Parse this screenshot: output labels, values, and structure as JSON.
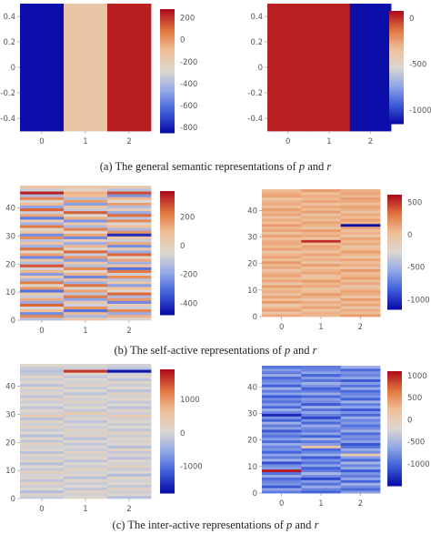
{
  "captions": [
    {
      "prefix": "(a) The general semantic representations of ",
      "v1": "p",
      "mid": " and ",
      "v2": "r"
    },
    {
      "prefix": "(b) The self-active representations of ",
      "v1": "p",
      "mid": " and ",
      "v2": "r"
    },
    {
      "prefix": "(c) The inter-active representations of ",
      "v1": "p",
      "mid": " and ",
      "v2": "r"
    }
  ],
  "colorscale": [
    "#0b0ea8",
    "#3f5fd9",
    "#93a8e8",
    "#dcd7d0",
    "#efbf98",
    "#e2763f",
    "#b00d1d"
  ],
  "chart_data": [
    {
      "type": "heatmap",
      "title": "",
      "x": [
        0,
        1,
        2
      ],
      "xticks": [
        "0",
        "1",
        "2"
      ],
      "yticks": [
        "0.4",
        "0.2",
        "0",
        "-0.2",
        "-0.4"
      ],
      "ylim": [
        -0.5,
        0.5
      ],
      "zlim": [
        -850,
        280
      ],
      "colorbar_ticks": [
        "200",
        "0",
        "-200",
        "-400",
        "-600",
        "-800"
      ],
      "rows": 1,
      "values": [
        [
          -850,
          -150,
          250
        ]
      ]
    },
    {
      "type": "heatmap",
      "title": "",
      "x": [
        0,
        1,
        2
      ],
      "xticks": [
        "0",
        "1",
        "2"
      ],
      "yticks": [
        "0.4",
        "0.2",
        "0",
        "-0.2",
        "-0.4"
      ],
      "ylim": [
        -0.5,
        0.5
      ],
      "zlim": [
        -1150,
        80
      ],
      "colorbar_ticks": [
        "0",
        "-500",
        "-1000"
      ],
      "rows": 1,
      "values": [
        [
          40,
          40,
          -1150
        ]
      ]
    },
    {
      "type": "heatmap",
      "title": "",
      "x": [
        0,
        1,
        2
      ],
      "xticks": [
        "0",
        "1",
        "2"
      ],
      "yticks": [
        "40",
        "30",
        "20",
        "10",
        "0"
      ],
      "ylim": [
        0,
        48
      ],
      "zlim": [
        -480,
        380
      ],
      "colorbar_ticks": [
        "200",
        "0",
        "-200",
        "-400"
      ],
      "rows": 48,
      "values": [
        [
          -120,
          60,
          -60
        ],
        [
          200,
          -150,
          120
        ],
        [
          -250,
          100,
          -180
        ],
        [
          90,
          -300,
          210
        ],
        [
          -60,
          180,
          -90
        ],
        [
          260,
          -80,
          30
        ],
        [
          -180,
          40,
          -260
        ],
        [
          130,
          -200,
          170
        ],
        [
          -90,
          220,
          -140
        ],
        [
          40,
          -110,
          250
        ],
        [
          -300,
          150,
          -40
        ],
        [
          170,
          -60,
          90
        ],
        [
          -40,
          240,
          -210
        ],
        [
          220,
          -170,
          60
        ],
        [
          -150,
          80,
          -120
        ],
        [
          60,
          -260,
          190
        ],
        [
          -220,
          120,
          -70
        ],
        [
          110,
          -40,
          230
        ],
        [
          -70,
          200,
          -300
        ],
        [
          280,
          -120,
          80
        ],
        [
          -130,
          60,
          -170
        ],
        [
          50,
          -220,
          140
        ],
        [
          -260,
          170,
          -30
        ],
        [
          150,
          -90,
          260
        ],
        [
          -30,
          250,
          -180
        ],
        [
          240,
          -60,
          40
        ],
        [
          -170,
          110,
          -240
        ],
        [
          80,
          -180,
          130
        ],
        [
          -110,
          30,
          -90
        ],
        [
          190,
          -250,
          60
        ],
        [
          -240,
          140,
          -420
        ],
        [
          70,
          -30,
          180
        ],
        [
          -50,
          210,
          -150
        ],
        [
          230,
          -140,
          90
        ],
        [
          -160,
          50,
          -60
        ],
        [
          30,
          -230,
          200
        ],
        [
          -280,
          130,
          -110
        ],
        [
          140,
          -50,
          250
        ],
        [
          -80,
          270,
          -190
        ],
        [
          260,
          -100,
          30
        ],
        [
          -200,
          70,
          -130
        ],
        [
          100,
          -210,
          160
        ],
        [
          -60,
          160,
          -50
        ],
        [
          210,
          -130,
          110
        ],
        [
          -140,
          90,
          -230
        ],
        [
          350,
          120,
          290
        ],
        [
          -90,
          -30,
          -120
        ],
        [
          60,
          40,
          20
        ]
      ]
    },
    {
      "type": "heatmap",
      "title": "",
      "x": [
        0,
        1,
        2
      ],
      "xticks": [
        "0",
        "1",
        "2"
      ],
      "yticks": [
        "40",
        "30",
        "20",
        "10",
        "0"
      ],
      "ylim": [
        0,
        48
      ],
      "zlim": [
        -1150,
        620
      ],
      "colorbar_ticks": [
        "500",
        "0",
        "-500",
        "-1000"
      ],
      "rows": 48,
      "values": [
        [
          120,
          60,
          180
        ],
        [
          -40,
          90,
          30
        ],
        [
          160,
          -20,
          110
        ],
        [
          60,
          150,
          -60
        ],
        [
          -80,
          40,
          140
        ],
        [
          190,
          110,
          50
        ],
        [
          20,
          -60,
          170
        ],
        [
          140,
          80,
          -30
        ],
        [
          -20,
          170,
          90
        ],
        [
          100,
          30,
          150
        ],
        [
          50,
          -40,
          60
        ],
        [
          170,
          120,
          -80
        ],
        [
          -60,
          60,
          120
        ],
        [
          130,
          180,
          20
        ],
        [
          30,
          10,
          160
        ],
        [
          150,
          -30,
          70
        ],
        [
          80,
          140,
          40
        ],
        [
          -30,
          70,
          180
        ],
        [
          110,
          20,
          -50
        ],
        [
          60,
          160,
          100
        ],
        [
          180,
          -50,
          30
        ],
        [
          10,
          100,
          140
        ],
        [
          140,
          40,
          -70
        ],
        [
          70,
          130,
          80
        ],
        [
          -50,
          -10,
          160
        ],
        [
          160,
          90,
          40
        ],
        [
          40,
          150,
          -40
        ],
        [
          120,
          30,
          110
        ],
        [
          90,
          520,
          60
        ],
        [
          20,
          -20,
          150
        ],
        [
          150,
          110,
          -60
        ],
        [
          -40,
          60,
          90
        ],
        [
          130,
          170,
          20
        ],
        [
          60,
          -40,
          140
        ],
        [
          170,
          80,
          -1150
        ],
        [
          30,
          140,
          70
        ],
        [
          110,
          20,
          160
        ],
        [
          -20,
          100,
          40
        ],
        [
          140,
          -30,
          120
        ],
        [
          80,
          160,
          -20
        ],
        [
          160,
          50,
          90
        ],
        [
          10,
          120,
          150
        ],
        [
          120,
          -10,
          30
        ],
        [
          70,
          140,
          110
        ],
        [
          -30,
          60,
          170
        ],
        [
          150,
          100,
          60
        ],
        [
          100,
          30,
          140
        ],
        [
          40,
          160,
          80
        ]
      ]
    },
    {
      "type": "heatmap",
      "title": "",
      "x": [
        0,
        1,
        2
      ],
      "xticks": [
        "0",
        "1",
        "2"
      ],
      "yticks": [
        "40",
        "30",
        "20",
        "10",
        "0"
      ],
      "ylim": [
        0,
        48
      ],
      "zlim": [
        -1800,
        1900
      ],
      "colorbar_ticks": [
        "1000",
        "0",
        "-1000"
      ],
      "rows": 48,
      "values": [
        [
          -120,
          80,
          -250
        ],
        [
          150,
          -60,
          40
        ],
        [
          -300,
          200,
          -90
        ],
        [
          60,
          -180,
          220
        ],
        [
          -80,
          40,
          -160
        ],
        [
          230,
          -120,
          90
        ],
        [
          -200,
          160,
          -40
        ],
        [
          90,
          -250,
          180
        ],
        [
          -40,
          120,
          -300
        ],
        [
          270,
          -60,
          60
        ],
        [
          -160,
          210,
          -120
        ],
        [
          40,
          -90,
          260
        ],
        [
          -260,
          60,
          -60
        ],
        [
          180,
          -200,
          140
        ],
        [
          -100,
          140,
          -220
        ],
        [
          120,
          -40,
          30
        ],
        [
          -220,
          250,
          -150
        ],
        [
          70,
          -140,
          200
        ],
        [
          -60,
          30,
          -270
        ],
        [
          240,
          -170,
          80
        ],
        [
          -180,
          110,
          -30
        ],
        [
          100,
          -260,
          160
        ],
        [
          -280,
          190,
          -110
        ],
        [
          50,
          -30,
          230
        ],
        [
          -140,
          240,
          -190
        ],
        [
          200,
          -110,
          60
        ],
        [
          -90,
          70,
          -140
        ],
        [
          160,
          -220,
          110
        ],
        [
          -240,
          140,
          -60
        ],
        [
          320,
          -80,
          380
        ],
        [
          -60,
          420,
          -110
        ],
        [
          130,
          -190,
          170
        ],
        [
          -200,
          60,
          -230
        ],
        [
          60,
          -120,
          40
        ],
        [
          -120,
          200,
          -160
        ],
        [
          220,
          -50,
          100
        ],
        [
          -170,
          130,
          -40
        ],
        [
          90,
          -230,
          190
        ],
        [
          -50,
          80,
          -250
        ],
        [
          190,
          -140,
          70
        ],
        [
          -230,
          170,
          -100
        ],
        [
          110,
          -60,
          150
        ],
        [
          -80,
          40,
          -210
        ],
        [
          160,
          -180,
          90
        ],
        [
          -150,
          110,
          -60
        ],
        [
          -250,
          1650,
          -1750
        ],
        [
          -120,
          -60,
          -210
        ],
        [
          80,
          30,
          -40
        ]
      ]
    },
    {
      "type": "heatmap",
      "title": "",
      "x": [
        0,
        1,
        2
      ],
      "xticks": [
        "0",
        "1",
        "2"
      ],
      "yticks": [
        "40",
        "30",
        "20",
        "10",
        "0"
      ],
      "ylim": [
        0,
        48
      ],
      "zlim": [
        -1500,
        1100
      ],
      "colorbar_ticks": [
        "1000",
        "500",
        "0",
        "-500",
        "-1000"
      ],
      "rows": 48,
      "values": [
        [
          -900,
          -1050,
          -700
        ],
        [
          -650,
          -850,
          -1000
        ],
        [
          -1100,
          -600,
          -800
        ],
        [
          -750,
          -950,
          -550
        ],
        [
          -850,
          -700,
          -1050
        ],
        [
          -1000,
          -1200,
          -650
        ],
        [
          -600,
          -800,
          -900
        ],
        [
          -950,
          -500,
          -750
        ],
        [
          1050,
          -900,
          -1100
        ],
        [
          -700,
          -1050,
          -600
        ],
        [
          -800,
          -650,
          -850
        ],
        [
          -1150,
          -950,
          -500
        ],
        [
          -550,
          -750,
          -1000
        ],
        [
          -900,
          -1100,
          -700
        ],
        [
          -650,
          -600,
          50
        ],
        [
          -1050,
          -850,
          -800
        ],
        [
          -750,
          -1000,
          -600
        ],
        [
          -850,
          150,
          -950
        ],
        [
          -600,
          -700,
          -1100
        ],
        [
          -1000,
          -900,
          -650
        ],
        [
          -700,
          -550,
          -850
        ],
        [
          -950,
          -1050,
          -750
        ],
        [
          -800,
          -650,
          -1000
        ],
        [
          -1100,
          -900,
          -550
        ],
        [
          -650,
          -800,
          -800
        ],
        [
          -900,
          -600,
          -950
        ],
        [
          -550,
          -1000,
          -700
        ],
        [
          -1050,
          -750,
          -850
        ],
        [
          -750,
          -1200,
          -600
        ],
        [
          -1350,
          -850,
          -1000
        ],
        [
          -850,
          -650,
          -750
        ],
        [
          -600,
          -950,
          -1100
        ],
        [
          -1000,
          -550,
          -650
        ],
        [
          -700,
          -1100,
          -900
        ],
        [
          -950,
          -800,
          -550
        ],
        [
          -800,
          -700,
          -1050
        ],
        [
          -1100,
          -1000,
          -750
        ],
        [
          -650,
          -600,
          -850
        ],
        [
          -900,
          -900,
          -1000
        ],
        [
          -550,
          -1050,
          -600
        ],
        [
          -1050,
          -750,
          -950
        ],
        [
          -750,
          -550,
          -700
        ],
        [
          -850,
          -950,
          -1100
        ],
        [
          -1000,
          -700,
          -650
        ],
        [
          -600,
          -1050,
          -850
        ],
        [
          -900,
          -650,
          -750
        ],
        [
          -700,
          -850,
          -1000
        ],
        [
          -950,
          -900,
          -600
        ]
      ]
    }
  ]
}
